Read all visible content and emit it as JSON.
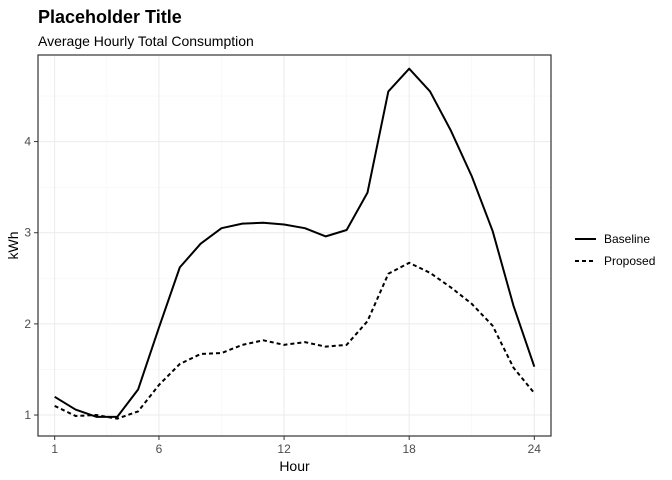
{
  "chart_data": {
    "type": "line",
    "title": "Placeholder Title",
    "subtitle": "Average Hourly Total Consumption",
    "xlabel": "Hour",
    "ylabel": "kWh",
    "xlim": [
      0.2,
      24.8
    ],
    "ylim": [
      0.77,
      4.95
    ],
    "xticks": [
      1,
      6,
      12,
      18,
      24
    ],
    "yticks": [
      1,
      2,
      3,
      4
    ],
    "grid": true,
    "legend_position": "right",
    "x": [
      1,
      2,
      3,
      4,
      5,
      6,
      7,
      8,
      9,
      10,
      11,
      12,
      13,
      14,
      15,
      16,
      17,
      18,
      19,
      20,
      21,
      22,
      23,
      24
    ],
    "series": [
      {
        "name": "Baseline",
        "style": "solid",
        "color": "#000000",
        "values": [
          1.2,
          1.06,
          0.98,
          0.98,
          1.28,
          1.96,
          2.62,
          2.88,
          3.05,
          3.1,
          3.11,
          3.09,
          3.05,
          2.96,
          3.03,
          3.44,
          4.55,
          4.8,
          4.55,
          4.12,
          3.62,
          3.02,
          2.2,
          1.53
        ]
      },
      {
        "name": "Proposed",
        "style": "dashed",
        "color": "#000000",
        "values": [
          1.1,
          0.99,
          1.0,
          0.96,
          1.04,
          1.33,
          1.56,
          1.67,
          1.68,
          1.77,
          1.82,
          1.77,
          1.8,
          1.75,
          1.77,
          2.03,
          2.55,
          2.67,
          2.56,
          2.4,
          2.22,
          1.98,
          1.52,
          1.24
        ]
      }
    ]
  }
}
